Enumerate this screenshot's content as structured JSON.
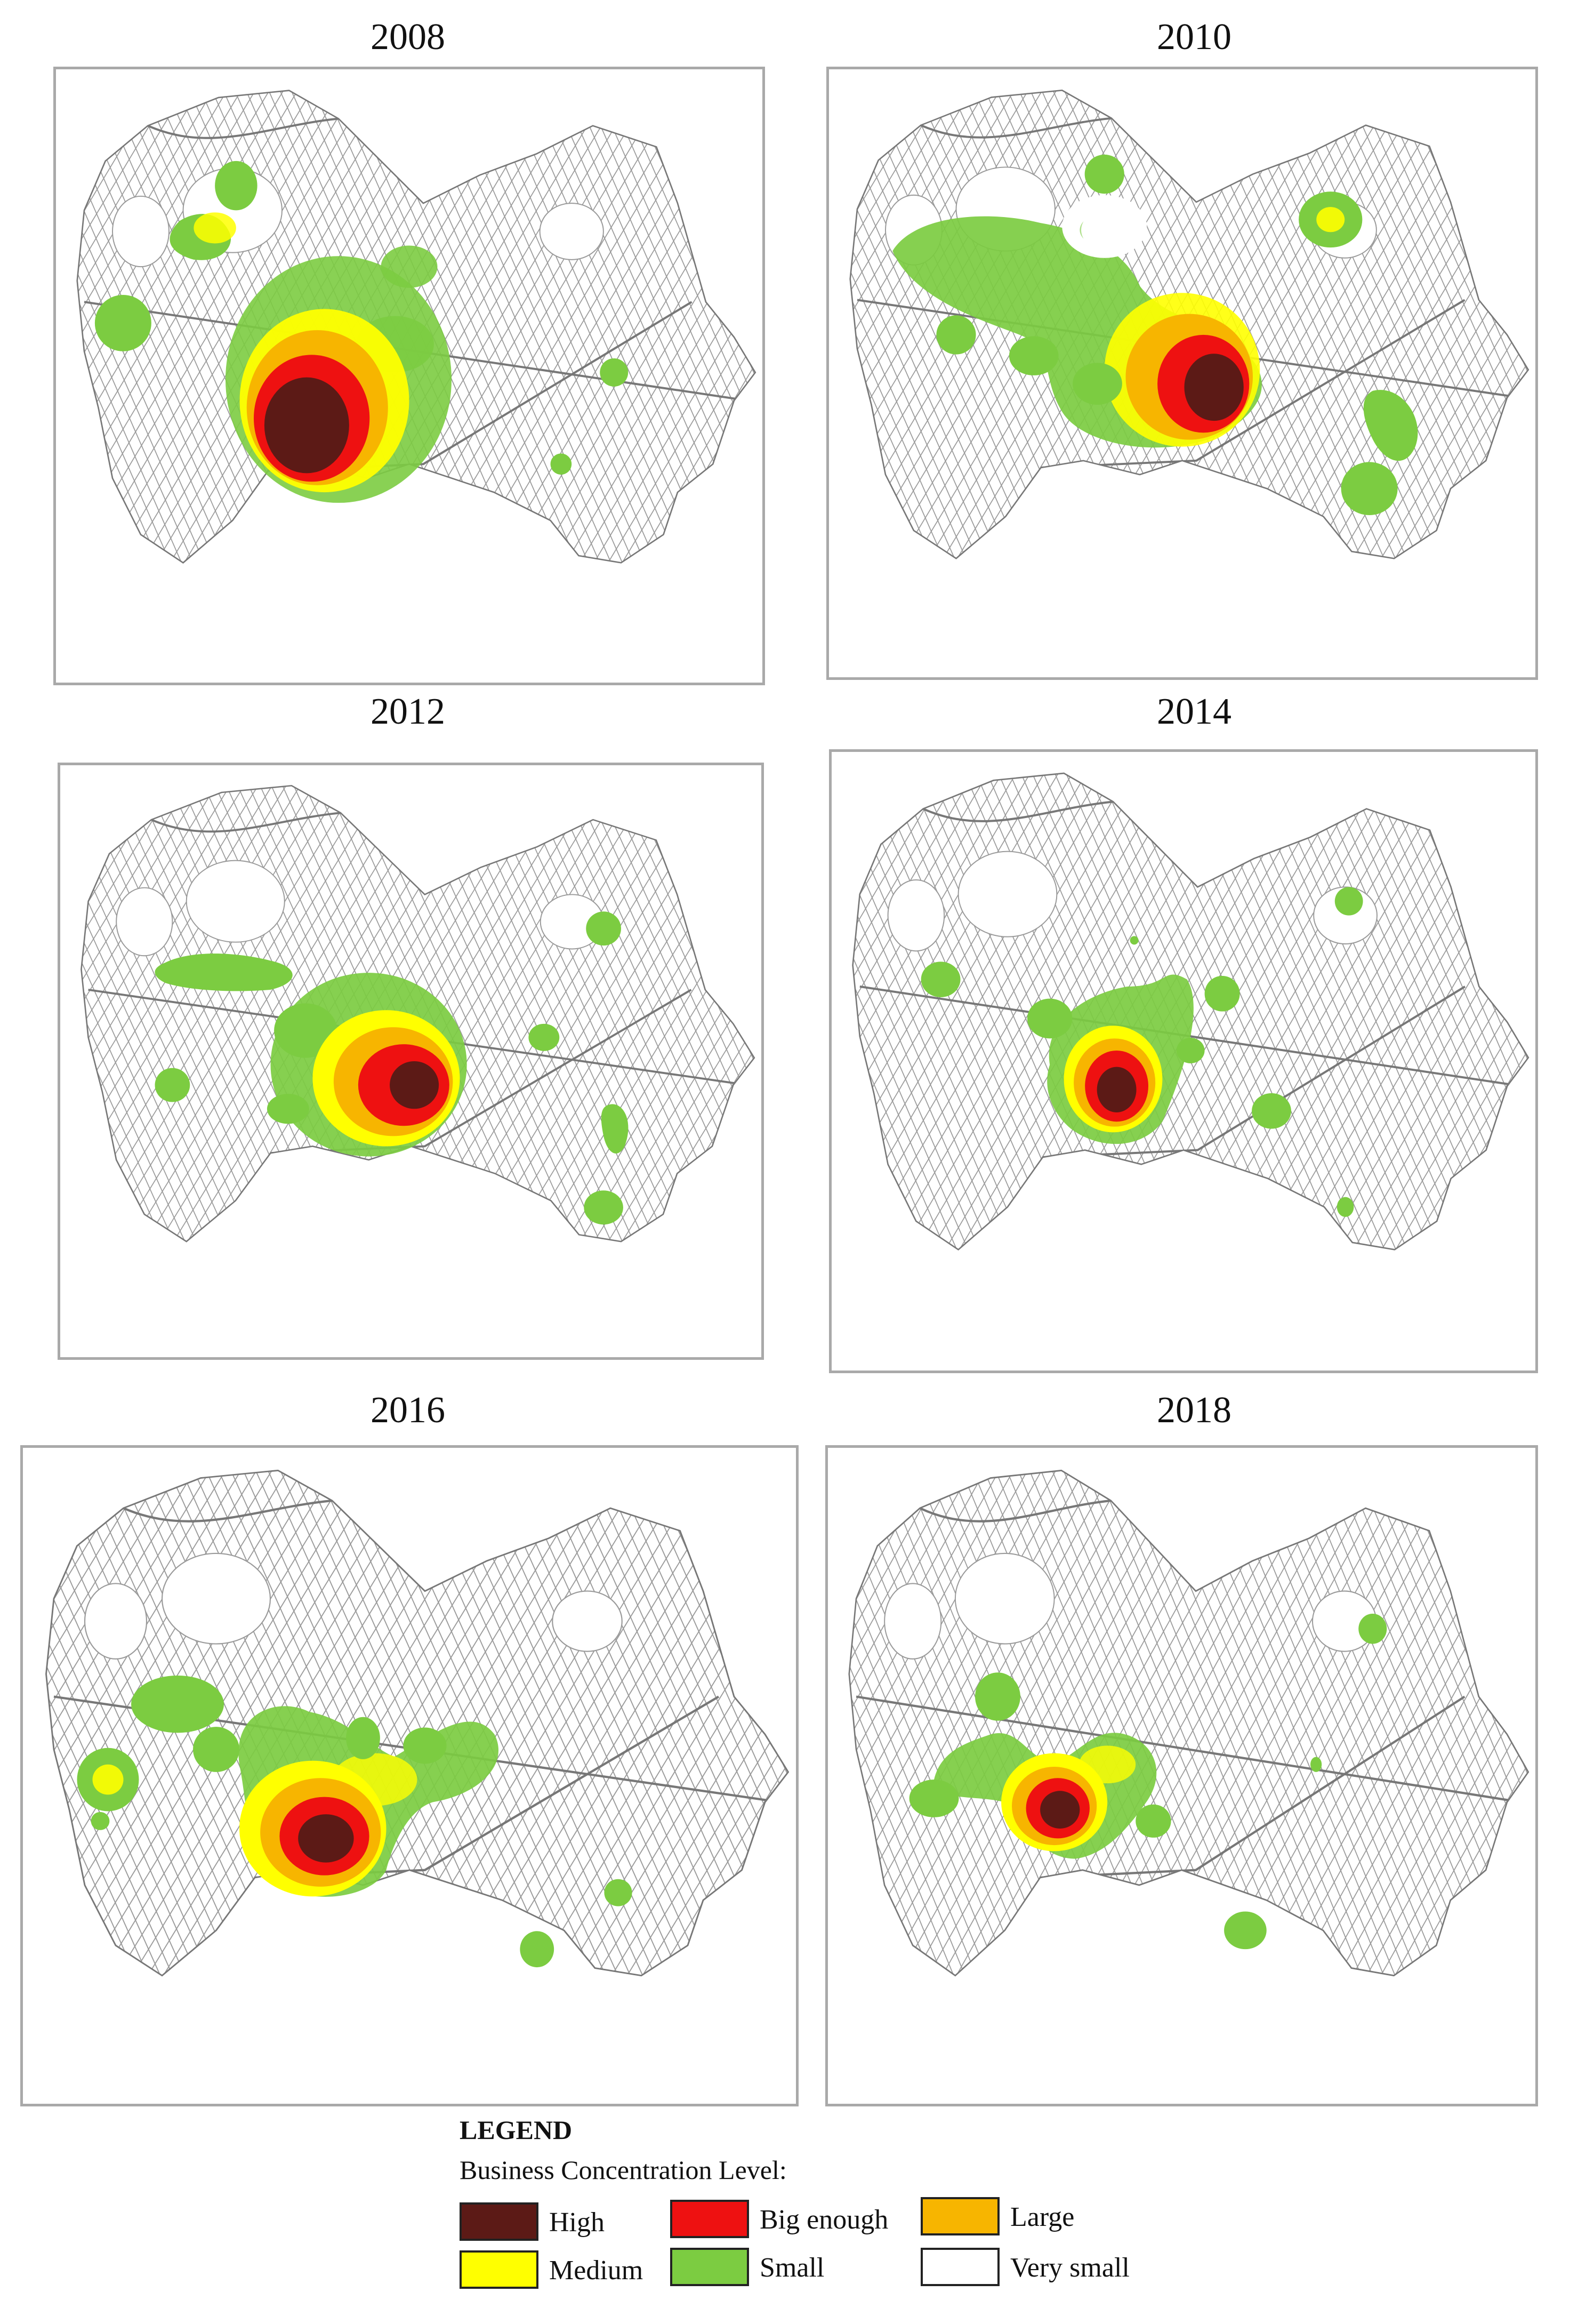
{
  "panels": [
    {
      "year": "2008"
    },
    {
      "year": "2010"
    },
    {
      "year": "2012"
    },
    {
      "year": "2014"
    },
    {
      "year": "2016"
    },
    {
      "year": "2018"
    }
  ],
  "legend": {
    "title": "LEGEND",
    "subtitle": "Business Concentration Level:",
    "items": [
      {
        "label": "High",
        "color": "#5c1a16"
      },
      {
        "label": "Big enough",
        "color": "#ee1111"
      },
      {
        "label": "Large",
        "color": "#f7b500"
      },
      {
        "label": "Medium",
        "color": "#ffff00"
      },
      {
        "label": "Small",
        "color": "#7ccc41"
      },
      {
        "label": "Very small",
        "color": "#ffffff"
      }
    ]
  },
  "colors": {
    "street": "#9a9a9a",
    "panel_border": "#a9a9a9"
  }
}
